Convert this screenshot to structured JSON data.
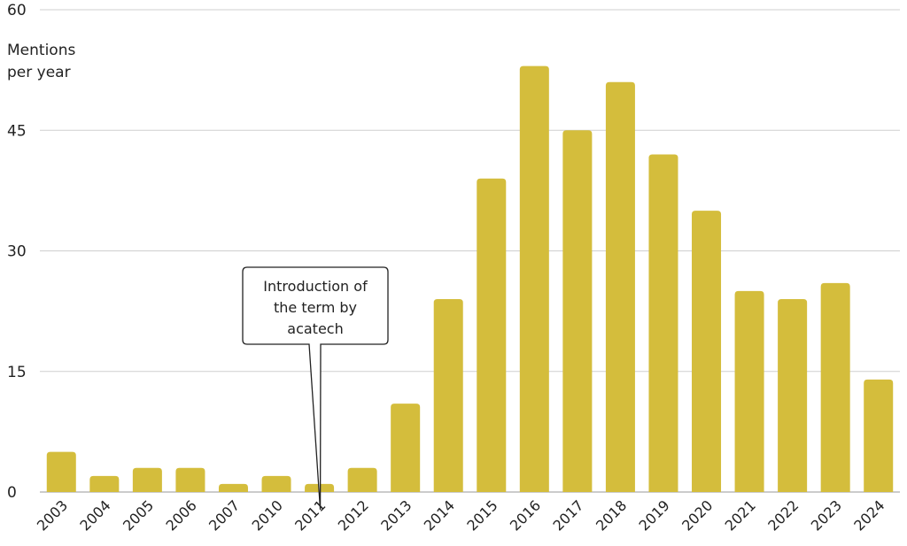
{
  "chart_data": {
    "type": "bar",
    "title": "",
    "ylabel_lines": [
      "Mentions",
      "per year"
    ],
    "xlabel": "",
    "ylim": [
      0,
      60
    ],
    "yticks": [
      0,
      15,
      30,
      45,
      60
    ],
    "grid": true,
    "bar_color": "#d4bd3c",
    "categories": [
      "2003",
      "2004",
      "2005",
      "2006",
      "2007",
      "2010",
      "2011",
      "2012",
      "2013",
      "2014",
      "2015",
      "2016",
      "2017",
      "2018",
      "2019",
      "2020",
      "2021",
      "2022",
      "2023",
      "2024"
    ],
    "values": [
      5,
      2,
      3,
      3,
      1,
      2,
      1,
      3,
      11,
      24,
      39,
      53,
      45,
      51,
      42,
      35,
      25,
      24,
      26,
      14
    ],
    "annotation": {
      "category": "2011",
      "lines": [
        "Introduction of",
        "the term by",
        "acatech"
      ]
    }
  }
}
